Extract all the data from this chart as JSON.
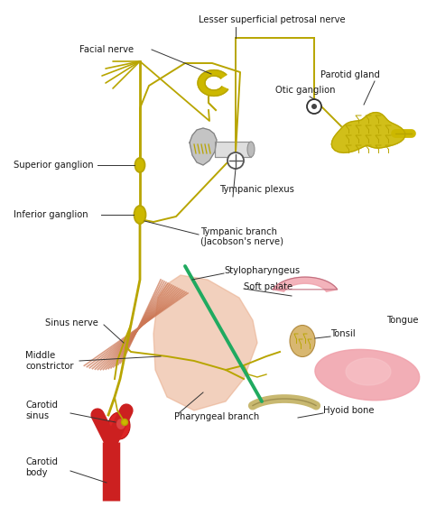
{
  "bg_color": "#ffffff",
  "nerve_color": "#b8a500",
  "nerve_color2": "#ccb800",
  "nerve_dark": "#a09000",
  "muscle_color": "#cc7755",
  "muscle_light": "#e8aa88",
  "soft_pink": "#f0b0b8",
  "soft_pink2": "#e89098",
  "carotid_color": "#cc2020",
  "green_nerve": "#20aa60",
  "gray_ear": "#aaaaaa",
  "gray_ear2": "#c8c8c8",
  "bone_color": "#c8b870",
  "tonsil_color": "#d4b060",
  "labels": {
    "facial_nerve": "Facial nerve",
    "lesser_petrosal": "Lesser superficial petrosal nerve",
    "otic_ganglion": "Otic ganglion",
    "parotid_gland": "Parotid gland",
    "superior_ganglion": "Superior ganglion",
    "tympanic_plexus": "Tympanic plexus",
    "inferior_ganglion": "Inferior ganglion",
    "tympanic_branch": "Tympanic branch",
    "jacobsons_nerve": "(Jacobson's nerve)",
    "stylopharyngeus": "Stylopharyngeus",
    "soft_palate": "Soft palate",
    "sinus_nerve": "Sinus nerve",
    "tonsil": "Tonsil",
    "middle_constrictor": "Middle\nconstrictor",
    "tongue": "Tongue",
    "carotid_sinus": "Carotid\nsinus",
    "pharyngeal_branch": "Pharyngeal branch",
    "hyoid_bone": "Hyoid bone",
    "carotid_body": "Carotid\nbody"
  },
  "fontsize": 7.2
}
